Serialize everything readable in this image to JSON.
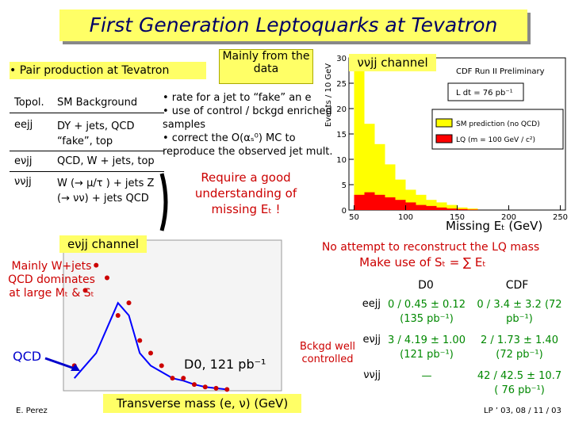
{
  "header": {
    "title": "First Generation Leptoquarks at Tevatron"
  },
  "intro": {
    "bullet": "• Pair production at Tevatron",
    "callout": "Mainly from the data"
  },
  "left_table": {
    "head": [
      "Topol.",
      "SM Background"
    ],
    "rows": [
      [
        "eejj",
        "DY + jets, QCD “fake”, top"
      ],
      [
        "eνjj",
        "QCD, W + jets, top"
      ],
      [
        "ννjj",
        "W (→ μ/τ ) + jets Z (→ νν) + jets QCD"
      ]
    ]
  },
  "notes": [
    "• rate for a jet to “fake” an e",
    "• use of control / bckgd enriched samples",
    "• correct the O(αₛ⁰) MC to reproduce the observed jet mult."
  ],
  "requirement": "Require a good understanding of missing Eₜ !",
  "cdf_plot": {
    "label": "ννjj channel",
    "heading": "CDF Run II Preliminary",
    "lumi": "L dt = 76 pb⁻¹",
    "y_label": "Events / 10 GeV",
    "x_label": "Missing Eₜ (GeV)",
    "xlim": [
      45,
      255
    ],
    "ylim": [
      0,
      30
    ],
    "xticks": [
      50,
      100,
      150,
      200,
      250
    ],
    "yticks": [
      0,
      5,
      10,
      15,
      20,
      25,
      30
    ],
    "bins": [
      50,
      60,
      70,
      80,
      90,
      100,
      110,
      120,
      130,
      140,
      150,
      160,
      170
    ],
    "series": [
      {
        "name": "SM prediction (no QCD)",
        "color": "#ffff00",
        "values": [
          30,
          17,
          13,
          9,
          6,
          4,
          3,
          2,
          1.5,
          1,
          0.5,
          0.3
        ]
      },
      {
        "name": "LQ (m = 100 GeV / c²)",
        "color": "#ff0000",
        "values": [
          3,
          3.5,
          3,
          2.5,
          2,
          1.5,
          1,
          0.8,
          0.5,
          0.3,
          0.2,
          0.1
        ]
      }
    ]
  },
  "d0_plot": {
    "label": "eνjj channel",
    "remark": "Mainly W+jets QCD dominates at large Mₜ & Sₜ",
    "qcd": "QCD",
    "lumi": "D0, 121 pb⁻¹",
    "x_label": "Transverse mass (e, ν) (GeV)",
    "xlim": [
      0,
      200
    ],
    "ylim": [
      0,
      12
    ],
    "x": [
      10,
      20,
      30,
      40,
      50,
      60,
      70,
      80,
      90,
      100,
      110,
      120,
      130,
      140,
      150
    ],
    "series": [
      {
        "name": "data",
        "color": "#cc0000",
        "values": [
          2,
          8,
          10,
          9,
          6,
          7,
          4,
          3,
          2,
          1,
          1,
          0.5,
          0.3,
          0.2,
          0.1
        ]
      },
      {
        "name": "W+jets",
        "color": "#0000ff",
        "values": [
          1,
          2,
          3,
          5,
          7,
          6,
          3,
          2,
          1.5,
          1,
          0.8,
          0.5,
          0.3,
          0.2,
          0.1
        ]
      }
    ]
  },
  "right": {
    "line1": "No attempt to reconstruct the LQ mass",
    "line2": "Make use of Sₜ = ∑ Eₜ",
    "cols": [
      "D0",
      "CDF"
    ],
    "side": "Bckgd well controlled",
    "rows": [
      {
        "topo": "eejj",
        "d0": "0 / 0.45 ± 0.12 (135 pb⁻¹)",
        "cdf": "0 / 3.4 ± 3.2 (72 pb⁻¹)"
      },
      {
        "topo": "eνjj",
        "d0": "3 / 4.19 ± 1.00 (121 pb⁻¹)",
        "cdf": "2 / 1.73 ± 1.40 (72 pb⁻¹)"
      },
      {
        "topo": "ννjj",
        "d0": "—",
        "cdf": "42 / 42.5 ± 10.7 ( 76 pb⁻¹)"
      }
    ]
  },
  "footer": {
    "author": "E. Perez",
    "event": "LP ’ 03, 08 / 11 / 03"
  }
}
